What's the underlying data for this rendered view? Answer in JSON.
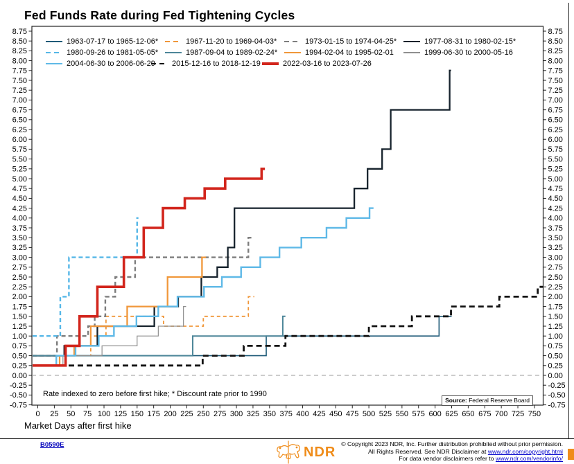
{
  "title": "Fed Funds Rate during Fed Tightening Cycles",
  "annotation": "Rate indexed to zero before first hike; * Discount rate prior to 1990",
  "source": {
    "label": "Source:",
    "text": " Federal Reserve Board"
  },
  "xlabel": "Market Days after first hike",
  "footer": {
    "doc_id": "B0590E",
    "brand": "NDR",
    "line1": "© Copyright 2023 NDR, Inc. Further distribution prohibited without prior permission.",
    "line2_prefix": "All Rights Reserved. See NDR Disclaimer at ",
    "line2_link": "www.ndr.com/copyright.html",
    "line3_prefix": "For data vendor disclaimers refer to ",
    "line3_link": "www.ndr.com/vendorinfo/"
  },
  "colors": {
    "accent_orange": "#ef8c1a",
    "link_blue": "#0000cc",
    "red_series": "#d2251c"
  },
  "chart_data": {
    "type": "line",
    "subtype": "step",
    "title": "Fed Funds Rate during Fed Tightening Cycles",
    "xlabel": "Market Days after first hike",
    "ylabel": "",
    "x_range": [
      0,
      763
    ],
    "y_range": [
      -0.75,
      8.75
    ],
    "grid": false,
    "zero_line_dashed": true,
    "legend_position": "top-inside",
    "x_ticks": [
      0,
      25,
      50,
      75,
      100,
      125,
      150,
      175,
      200,
      225,
      250,
      275,
      300,
      325,
      350,
      375,
      400,
      425,
      450,
      475,
      500,
      525,
      550,
      575,
      600,
      625,
      650,
      675,
      700,
      725,
      750
    ],
    "y_ticks": [
      "8.75",
      "8.50",
      "8.25",
      "8.00",
      "7.75",
      "7.50",
      "7.25",
      "7.00",
      "6.75",
      "6.50",
      "6.25",
      "6.00",
      "5.75",
      "5.50",
      "5.25",
      "5.00",
      "4.75",
      "4.50",
      "4.25",
      "4.00",
      "3.75",
      "3.50",
      "3.25",
      "3.00",
      "2.75",
      "2.50",
      "2.25",
      "2.00",
      "1.75",
      "1.50",
      "1.25",
      "1.00",
      "0.75",
      "0.50",
      "0.25",
      "0.00",
      "-0.25",
      "-0.50",
      "-0.75"
    ],
    "legend_rows": [
      [
        "s1963",
        "s1967",
        "s1973",
        "s1977"
      ],
      [
        "s1980",
        "s1987",
        "s1994",
        "s1999"
      ],
      [
        "s2004",
        "s2015",
        "s2022"
      ]
    ],
    "series": [
      {
        "id": "s1963",
        "label": "1963-07-17 to 1965-12-06*",
        "color": "#1e5a78",
        "width": 1.6,
        "dash": null,
        "points": [
          [
            0,
            0.5
          ],
          [
            345,
            1.0
          ],
          [
            606,
            1.5
          ]
        ],
        "end_day": 625
      },
      {
        "id": "s1967",
        "label": "1967-11-20 to 1969-04-03*",
        "color": "#f0973a",
        "width": 1.8,
        "dash": [
          5,
          4
        ],
        "points": [
          [
            0,
            0.5
          ],
          [
            80,
            1.0
          ],
          [
            103,
            1.5
          ],
          [
            190,
            1.25
          ],
          [
            250,
            1.5
          ],
          [
            318,
            2.0
          ]
        ],
        "end_day": 327
      },
      {
        "id": "s1973",
        "label": "1973-01-15 to 1974-04-25*",
        "color": "#7d7d7d",
        "width": 2.4,
        "dash": [
          6,
          4
        ],
        "points": [
          [
            0,
            0.5
          ],
          [
            29,
            1.0
          ],
          [
            76,
            1.25
          ],
          [
            86,
            1.5
          ],
          [
            102,
            2.0
          ],
          [
            117,
            2.5
          ],
          [
            147,
            3.0
          ],
          [
            318,
            3.5
          ]
        ],
        "end_day": 326
      },
      {
        "id": "s1977",
        "label": "1977-08-31 to 1980-02-15*",
        "color": "#16222c",
        "width": 2.3,
        "dash": null,
        "points": [
          [
            0,
            0.5
          ],
          [
            40,
            0.75
          ],
          [
            90,
            1.25
          ],
          [
            176,
            1.75
          ],
          [
            212,
            2.0
          ],
          [
            247,
            2.5
          ],
          [
            271,
            2.75
          ],
          [
            287,
            3.25
          ],
          [
            297,
            4.25
          ],
          [
            478,
            4.75
          ],
          [
            498,
            5.25
          ],
          [
            520,
            5.75
          ],
          [
            533,
            6.75
          ],
          [
            622,
            7.75
          ]
        ],
        "end_day": 624
      },
      {
        "id": "s1980",
        "label": "1980-09-26 to 1981-05-05*",
        "color": "#55b7e7",
        "width": 2.4,
        "dash": [
          6,
          4
        ],
        "points": [
          [
            0,
            1.0
          ],
          [
            34,
            2.0
          ],
          [
            47,
            3.0
          ],
          [
            150,
            4.0
          ]
        ],
        "end_day": 152
      },
      {
        "id": "s1987",
        "label": "1987-09-04 to 1989-02-24*",
        "color": "#4d8699",
        "width": 2.0,
        "dash": null,
        "points": [
          [
            0,
            0.5
          ],
          [
            234,
            1.0
          ],
          [
            370,
            1.5
          ]
        ],
        "end_day": 374
      },
      {
        "id": "s1994",
        "label": "1994-02-04 to 1995-02-01",
        "color": "#f0973a",
        "width": 2.3,
        "dash": null,
        "points": [
          [
            0,
            0.25
          ],
          [
            33,
            0.5
          ],
          [
            55,
            0.75
          ],
          [
            80,
            1.25
          ],
          [
            135,
            1.75
          ],
          [
            196,
            2.5
          ],
          [
            248,
            3.0
          ]
        ],
        "end_day": 254
      },
      {
        "id": "s1999",
        "label": "1999-06-30 to 2000-05-16",
        "color": "#8f8f8f",
        "width": 1.2,
        "dash": null,
        "points": [
          [
            0,
            0.25
          ],
          [
            38,
            0.5
          ],
          [
            97,
            0.75
          ],
          [
            150,
            1.0
          ],
          [
            182,
            1.25
          ],
          [
            220,
            1.75
          ]
        ],
        "end_day": 224
      },
      {
        "id": "s2004",
        "label": "2004-06-30 to 2006-06-29",
        "color": "#5fb9e7",
        "width": 2.4,
        "dash": null,
        "points": [
          [
            0,
            0.25
          ],
          [
            28,
            0.5
          ],
          [
            57,
            0.75
          ],
          [
            92,
            1.0
          ],
          [
            115,
            1.25
          ],
          [
            149,
            1.5
          ],
          [
            182,
            1.75
          ],
          [
            211,
            2.0
          ],
          [
            251,
            2.25
          ],
          [
            278,
            2.5
          ],
          [
            307,
            2.75
          ],
          [
            336,
            3.0
          ],
          [
            365,
            3.25
          ],
          [
            398,
            3.5
          ],
          [
            436,
            3.75
          ],
          [
            466,
            4.0
          ],
          [
            501,
            4.25
          ]
        ],
        "end_day": 507
      },
      {
        "id": "s2015",
        "label": "2015-12-16 to 2018-12-19",
        "color": "#121212",
        "width": 2.8,
        "dash": [
          8,
          5
        ],
        "points": [
          [
            0,
            0.25
          ],
          [
            249,
            0.5
          ],
          [
            311,
            0.75
          ],
          [
            374,
            1.0
          ],
          [
            500,
            1.25
          ],
          [
            565,
            1.5
          ],
          [
            624,
            1.75
          ],
          [
            697,
            2.0
          ],
          [
            755,
            2.25
          ]
        ],
        "end_day": 763
      },
      {
        "id": "s2022",
        "label": "2022-03-16 to 2023-07-26",
        "color": "#d2251c",
        "width": 3.6,
        "dash": null,
        "points": [
          [
            0,
            0.25
          ],
          [
            42,
            0.75
          ],
          [
            63,
            1.5
          ],
          [
            90,
            2.25
          ],
          [
            130,
            3.0
          ],
          [
            160,
            3.75
          ],
          [
            189,
            4.25
          ],
          [
            222,
            4.5
          ],
          [
            252,
            4.75
          ],
          [
            283,
            5.0
          ],
          [
            338,
            5.25
          ]
        ],
        "end_day": 343
      }
    ]
  }
}
